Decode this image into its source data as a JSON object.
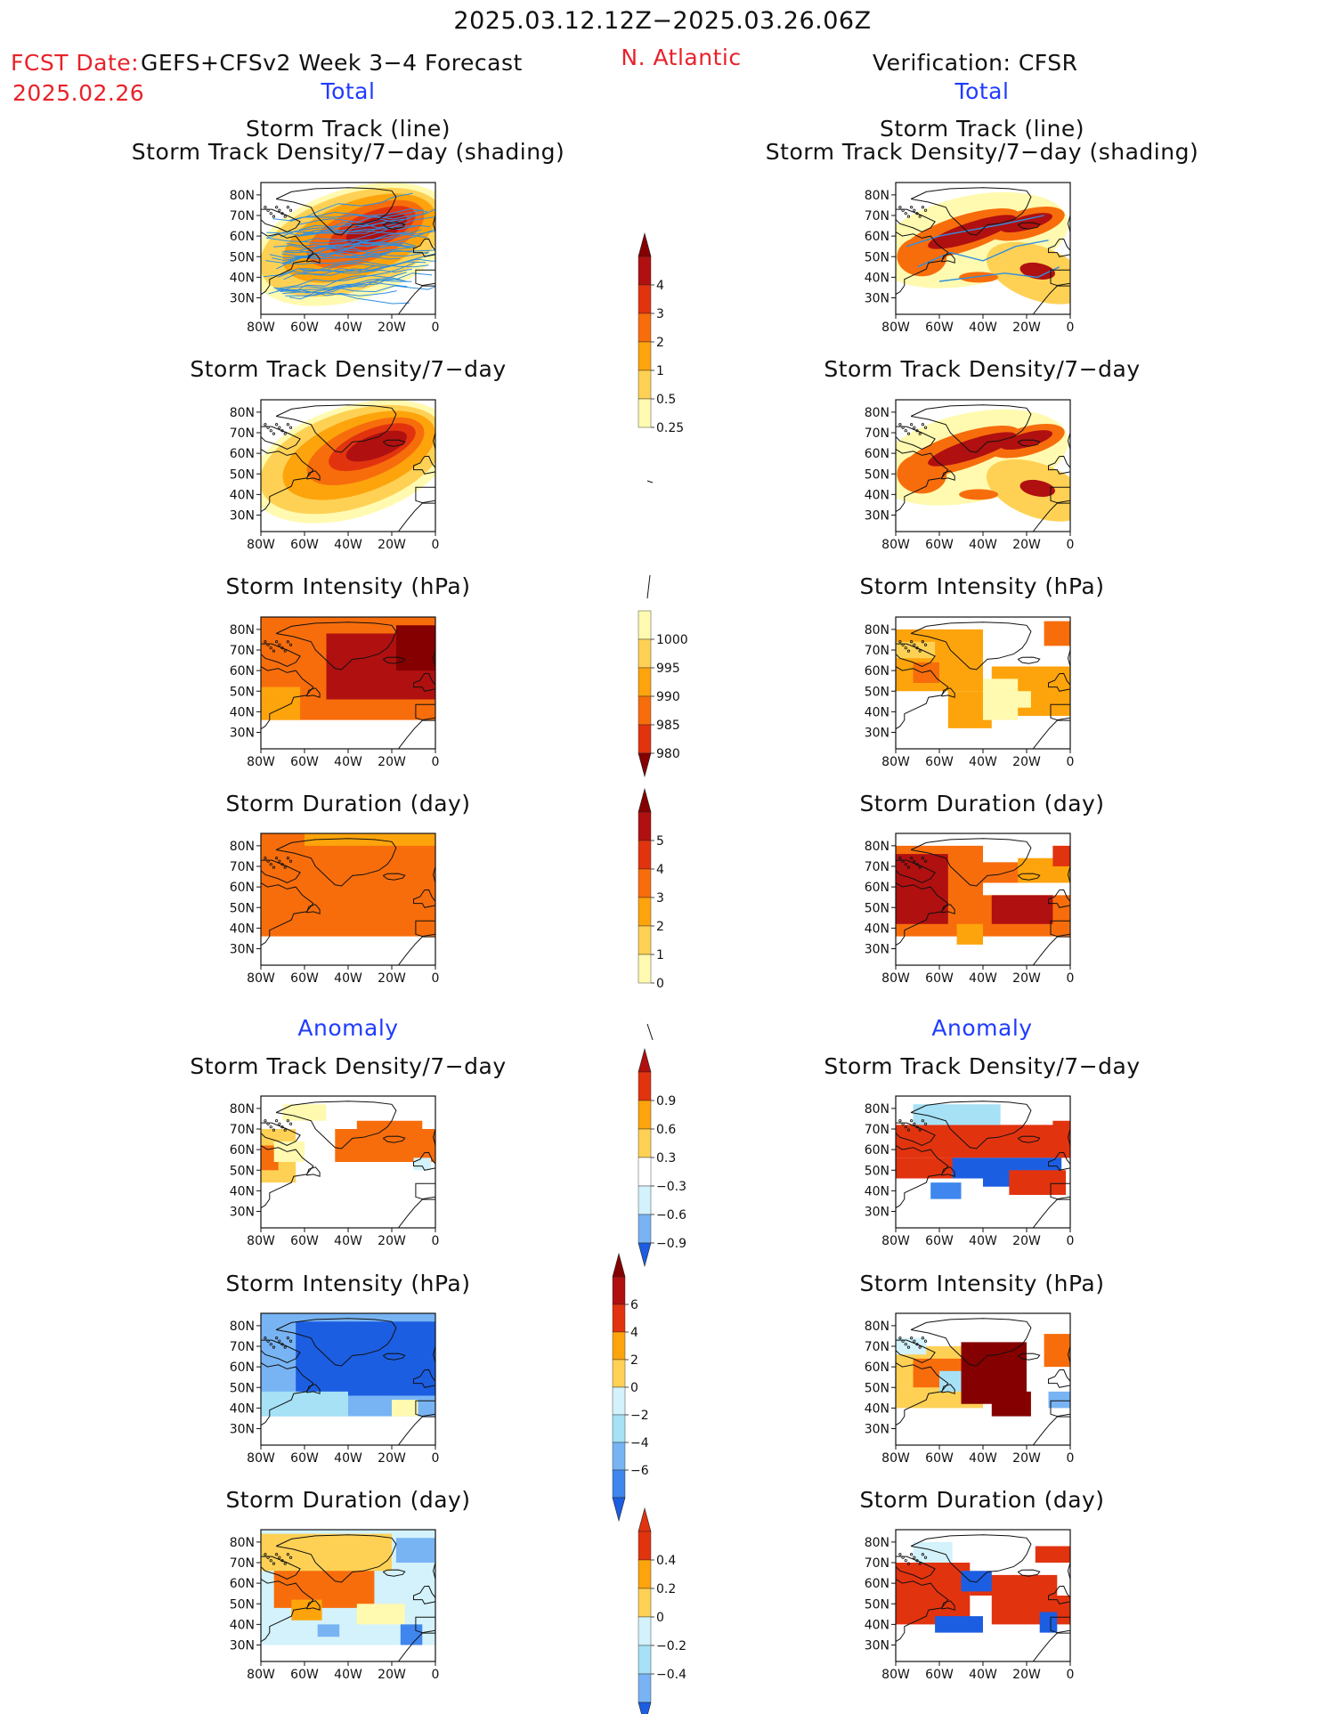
{
  "header": {
    "date_range": "2025.03.12.12Z−2025.03.26.06Z",
    "fcst_date_label": "FCST Date:",
    "fcst_product": "GEFS+CFSv2 Week 3−4 Forecast",
    "fcst_date": "2025.02.26",
    "region": "N. Atlantic",
    "verification": "Verification: CFSR"
  },
  "sections": {
    "total": "Total",
    "anomaly": "Anomaly"
  },
  "panel_titles": {
    "track_line": "Storm Track (line)",
    "track_shading": "Storm Track Density/7−day (shading)",
    "density": "Storm Track Density/7−day",
    "intensity": "Storm Intensity (hPa)",
    "duration": "Storm Duration (day)"
  },
  "map_axes": {
    "lat_labels": [
      "80N",
      "70N",
      "60N",
      "50N",
      "40N",
      "30N"
    ],
    "lon_labels": [
      "80W",
      "60W",
      "40W",
      "20W",
      "0"
    ]
  },
  "colorbars": {
    "density_total": [
      "4",
      "3",
      "2",
      "1",
      "0.5",
      "0.25"
    ],
    "intensity_total": [
      "1000",
      "995",
      "990",
      "985",
      "980"
    ],
    "duration_total": [
      "5",
      "4",
      "3",
      "2",
      "1",
      "0"
    ],
    "density_anomaly": [
      "0.9",
      "0.6",
      "0.3",
      "−0.3",
      "−0.6",
      "−0.9"
    ],
    "intensity_anomaly": [
      "6",
      "4",
      "2",
      "0",
      "−2",
      "−4",
      "−6"
    ],
    "duration_anomaly": [
      "0.4",
      "0.2",
      "0",
      "−0.2",
      "−0.4"
    ]
  },
  "palette": {
    "warm": [
      "#fffab0",
      "#fed155",
      "#fda40c",
      "#f76d0c",
      "#e2330f",
      "#b01010",
      "#850000"
    ],
    "cool": [
      "#d3f2fb",
      "#a6e1f6",
      "#78b4f4",
      "#3f86ee",
      "#1c5ee2",
      "#1246c8"
    ],
    "track_line": "#2f8fe0"
  }
}
